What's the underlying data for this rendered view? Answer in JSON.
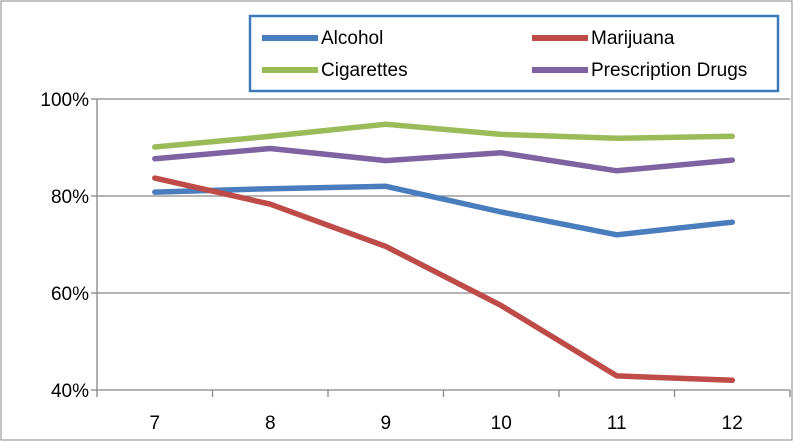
{
  "chart_data": {
    "type": "line",
    "categories": [
      "7",
      "8",
      "9",
      "10",
      "11",
      "12"
    ],
    "series": [
      {
        "name": "Alcohol",
        "color": "#4a7dbd",
        "values": [
          80.8,
          81.5,
          82.0,
          76.7,
          72.0,
          74.6
        ]
      },
      {
        "name": "Marijuana",
        "color": "#be4b48",
        "values": [
          83.7,
          78.3,
          69.6,
          57.4,
          42.9,
          42.0
        ]
      },
      {
        "name": "Cigarettes",
        "color": "#9bbb59",
        "values": [
          90.1,
          92.3,
          94.8,
          92.7,
          91.9,
          92.3
        ]
      },
      {
        "name": "Prescription Drugs",
        "color": "#7f62a1",
        "values": [
          87.7,
          89.8,
          87.3,
          88.9,
          85.2,
          87.4
        ]
      }
    ],
    "ylim": [
      40,
      100
    ],
    "yticks": [
      40,
      60,
      80,
      100
    ],
    "ytick_labels": [
      "40%",
      "60%",
      "80%",
      "100%"
    ],
    "y_grid": true,
    "legend_position": "top",
    "title": "",
    "xlabel": "",
    "ylabel": ""
  }
}
